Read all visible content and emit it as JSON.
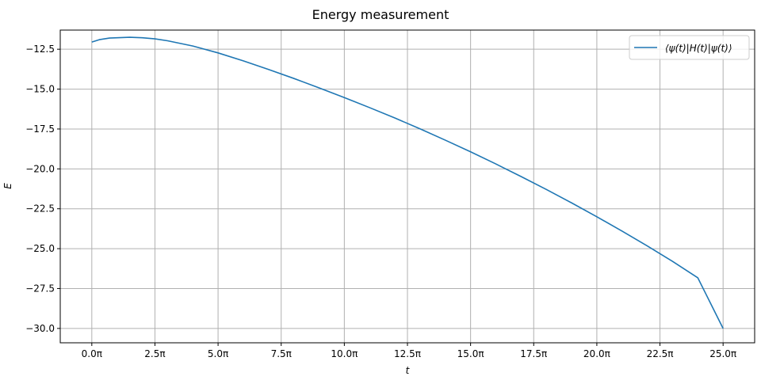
{
  "chart_data": {
    "type": "line",
    "title": "Energy measurement",
    "xlabel": "t",
    "ylabel": "E",
    "xlim": [
      -1.25,
      26.25
    ],
    "ylim": [
      -30.9,
      -11.3
    ],
    "x_unit": "π",
    "x_ticks": [
      0.0,
      2.5,
      5.0,
      7.5,
      10.0,
      12.5,
      15.0,
      17.5,
      20.0,
      22.5,
      25.0
    ],
    "x_tick_labels": [
      "0.0π",
      "2.5π",
      "5.0π",
      "7.5π",
      "10.0π",
      "12.5π",
      "15.0π",
      "17.5π",
      "20.0π",
      "22.5π",
      "25.0π"
    ],
    "y_ticks": [
      -12.5,
      -15.0,
      -17.5,
      -20.0,
      -22.5,
      -25.0,
      -27.5,
      -30.0
    ],
    "y_tick_labels": [
      "−12.5",
      "−15.0",
      "−17.5",
      "−20.0",
      "−22.5",
      "−25.0",
      "−27.5",
      "−30.0"
    ],
    "grid": true,
    "legend_position": "top-right",
    "series": [
      {
        "name": "⟨ψ(t)|H(t)|ψ(t)⟩",
        "color": "#1f77b4",
        "x": [
          0.0,
          0.3,
          0.7,
          1.0,
          1.5,
          2.0,
          2.5,
          3.0,
          4.0,
          5.0,
          6.0,
          7.0,
          8.0,
          9.0,
          10.0,
          11.0,
          12.0,
          13.0,
          14.0,
          15.0,
          16.0,
          17.0,
          18.0,
          19.0,
          20.0,
          21.0,
          22.0,
          23.0,
          24.0,
          25.0
        ],
        "y": [
          -12.05,
          -11.9,
          -11.8,
          -11.78,
          -11.75,
          -11.78,
          -11.85,
          -11.97,
          -12.3,
          -12.73,
          -13.23,
          -13.77,
          -14.33,
          -14.92,
          -15.53,
          -16.16,
          -16.81,
          -17.49,
          -18.2,
          -18.93,
          -19.69,
          -20.48,
          -21.29,
          -22.13,
          -23.0,
          -23.9,
          -24.83,
          -25.8,
          -26.83,
          -30.0
        ]
      }
    ]
  }
}
